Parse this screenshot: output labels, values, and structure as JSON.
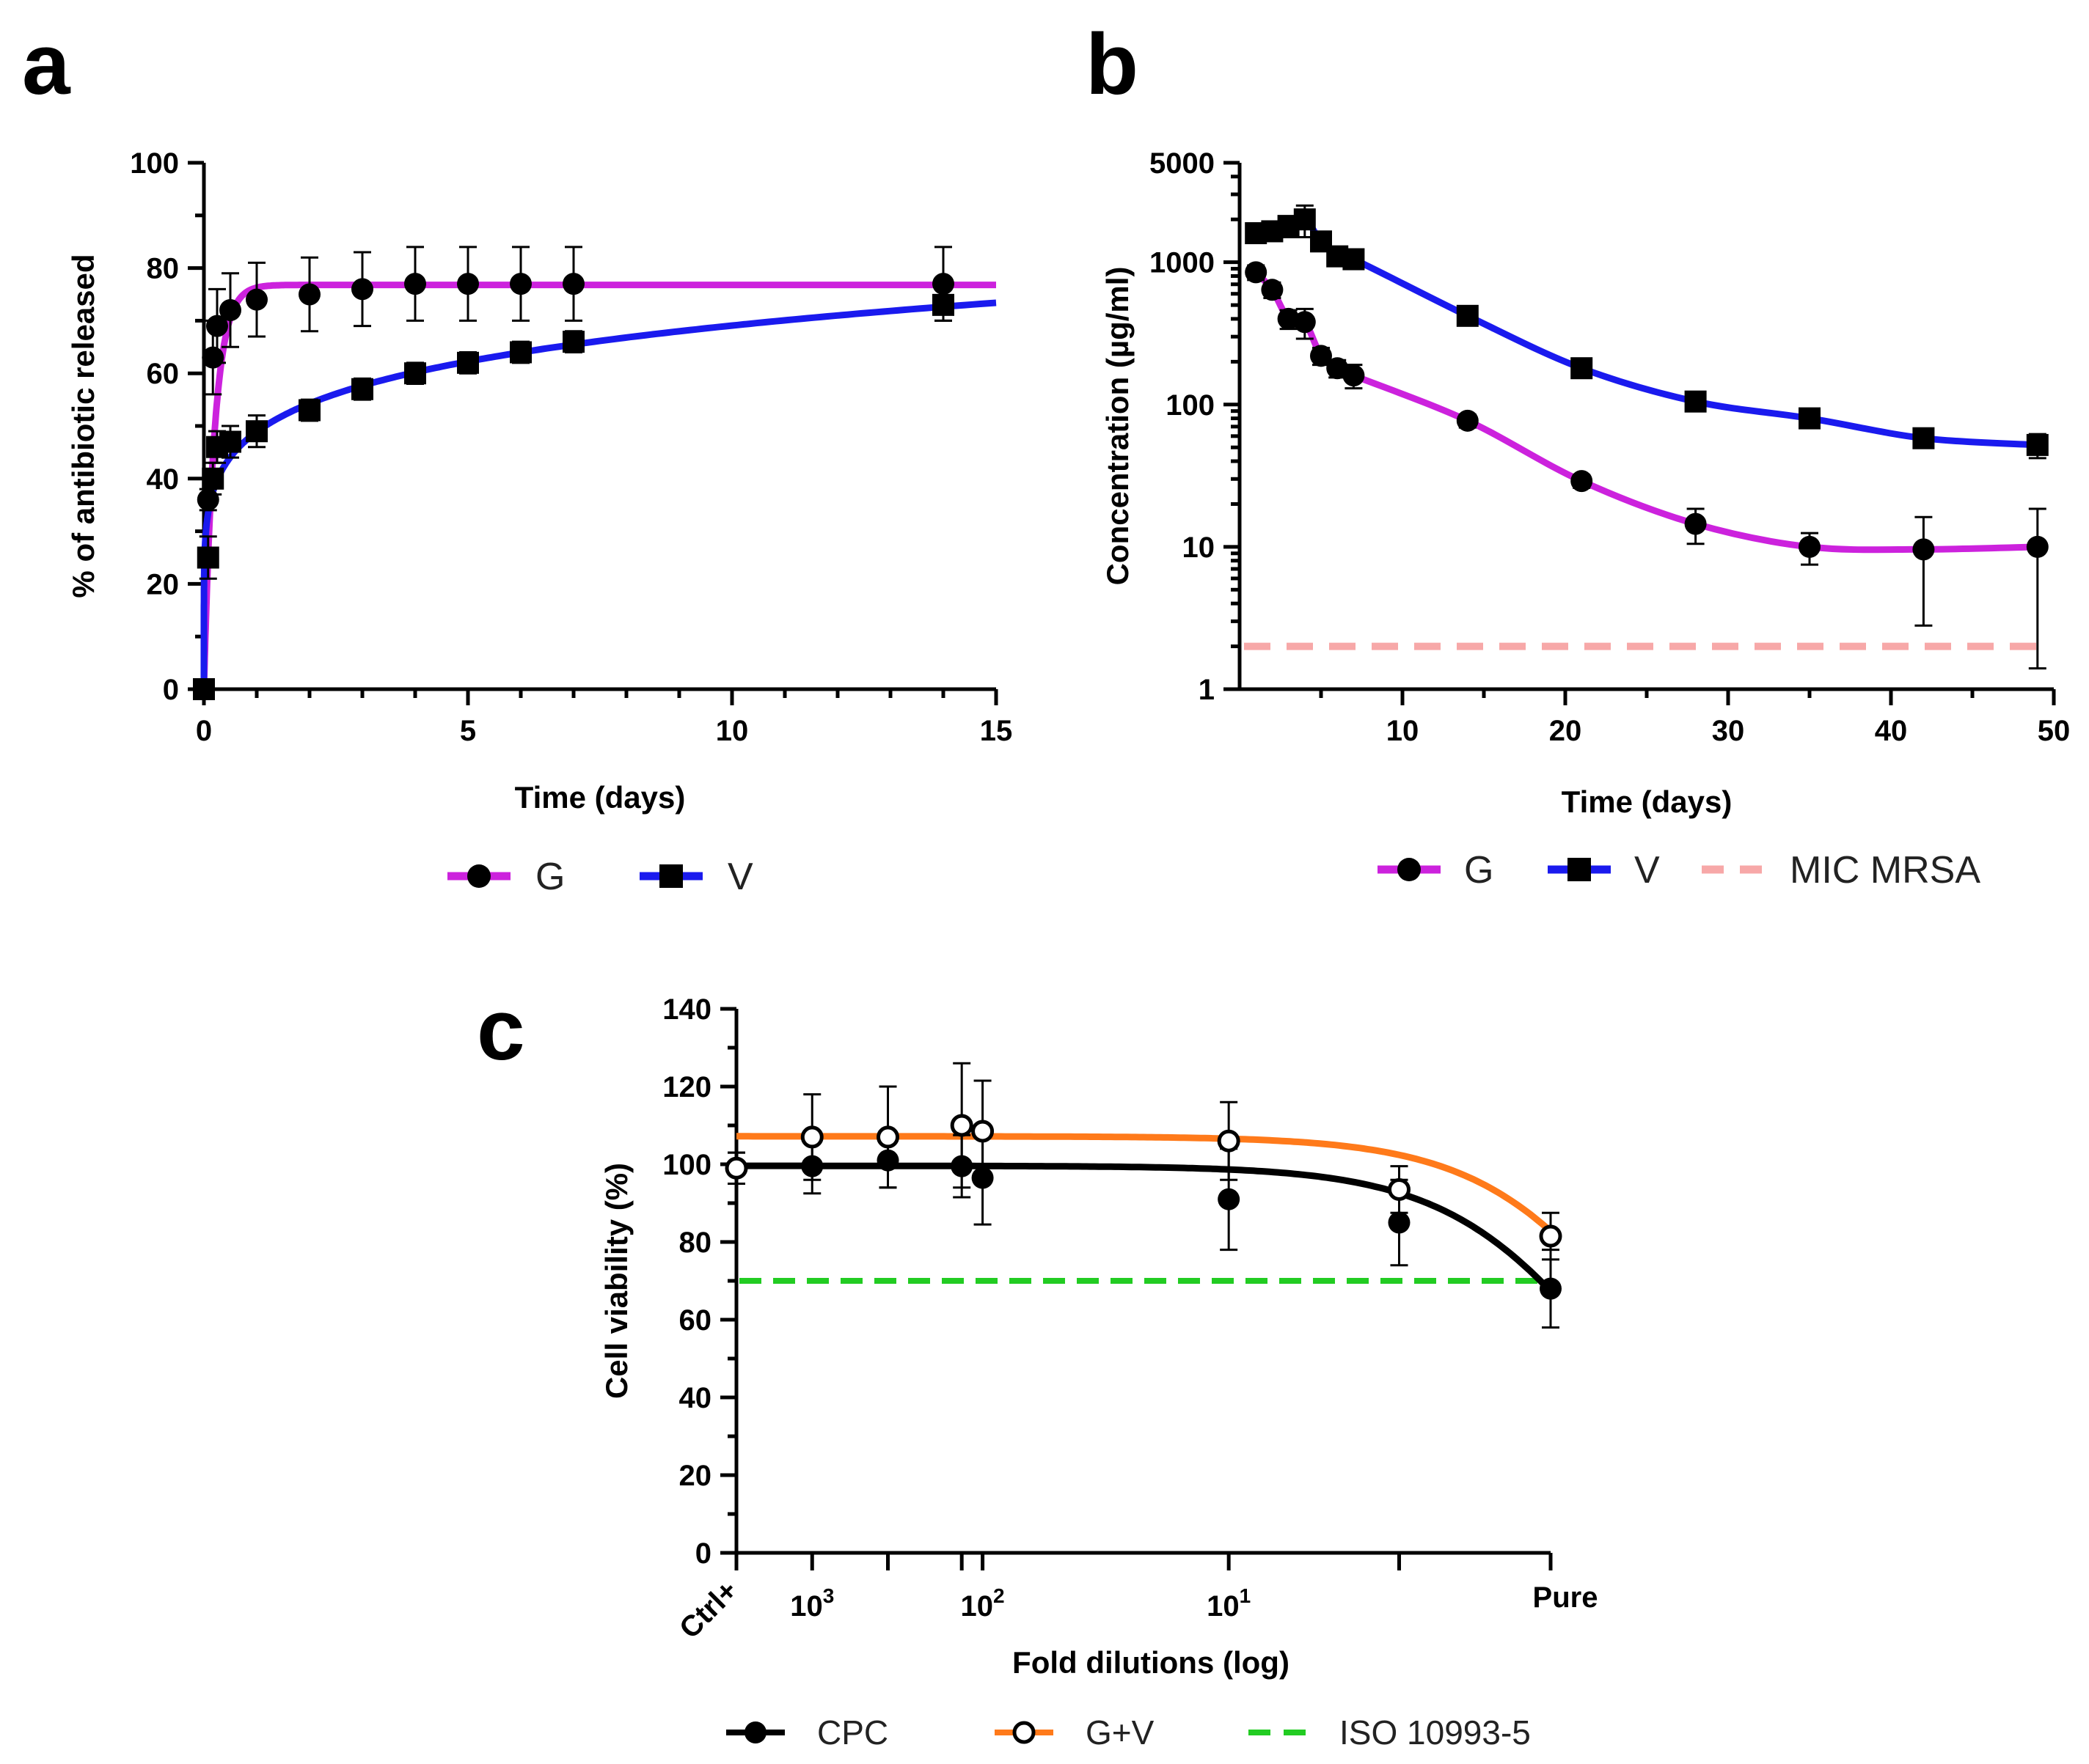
{
  "chart_data": [
    {
      "panel": "a",
      "type": "scatter",
      "xlabel": "Time (days)",
      "ylabel": "% of antibiotic released",
      "xlim": [
        0,
        15
      ],
      "ylim": [
        0,
        100
      ],
      "xticks": [
        0,
        5,
        10,
        15
      ],
      "yticks": [
        0,
        20,
        40,
        60,
        80,
        100
      ],
      "legend": "bottom",
      "series": [
        {
          "name": "G",
          "color": "#cc22dd",
          "marker": "circle",
          "x": [
            0,
            0.08,
            0.17,
            0.25,
            0.5,
            1,
            2,
            3,
            4,
            5,
            6,
            7,
            14
          ],
          "y": [
            0,
            36,
            63,
            69,
            72,
            74,
            75,
            76,
            77,
            77,
            77,
            77,
            77
          ],
          "err": [
            0,
            2,
            7,
            7,
            7,
            7,
            7,
            7,
            7,
            7,
            7,
            7,
            7
          ],
          "fit": {
            "model": "one-phase",
            "plateau": 76.8,
            "k": 5
          }
        },
        {
          "name": "V",
          "color": "#1a1aee",
          "marker": "square",
          "x": [
            0,
            0.08,
            0.17,
            0.25,
            0.5,
            1,
            2,
            3,
            4,
            5,
            6,
            7,
            14
          ],
          "y": [
            0,
            25,
            40,
            46,
            47,
            49,
            53,
            57,
            60,
            62,
            64,
            66,
            73
          ],
          "err": [
            0,
            4,
            3,
            3,
            3,
            3,
            2,
            2,
            2,
            2,
            2,
            2,
            3
          ],
          "fit": {
            "model": "power",
            "a": 48.9,
            "b": 0.15
          }
        }
      ]
    },
    {
      "panel": "b",
      "type": "line",
      "xlabel": "Time (days)",
      "ylabel": "Concentration (µg/ml)",
      "xlim": [
        0,
        50
      ],
      "ylim": [
        1,
        5000
      ],
      "yscale": "log",
      "xticks": [
        10,
        20,
        30,
        40,
        50
      ],
      "ytick_labels": [
        "1",
        "10",
        "100",
        "1000",
        "5000"
      ],
      "yticks": [
        1,
        10,
        100,
        1000,
        5000
      ],
      "legend": "bottom",
      "series": [
        {
          "name": "G",
          "color": "#cc22dd",
          "marker": "circle",
          "x": [
            1,
            2,
            3,
            4,
            5,
            6,
            7,
            14,
            21,
            28,
            35,
            42,
            49
          ],
          "y": [
            850,
            640,
            400,
            380,
            220,
            180,
            160,
            77,
            29,
            14.5,
            10,
            9.6,
            10
          ],
          "err_lo": [
            100,
            80,
            60,
            90,
            30,
            25,
            30,
            8,
            3,
            4,
            2.5,
            6.8,
            8.6
          ],
          "err_hi": [
            100,
            80,
            60,
            90,
            30,
            25,
            30,
            8,
            3,
            4,
            2.5,
            6.6,
            8.5
          ]
        },
        {
          "name": "V",
          "color": "#1a1aee",
          "marker": "square",
          "x": [
            1,
            2,
            3,
            4,
            5,
            6,
            7,
            14,
            21,
            28,
            35,
            42,
            49
          ],
          "y": [
            1600,
            1650,
            1800,
            2000,
            1400,
            1100,
            1050,
            420,
            180,
            105,
            80,
            58,
            52
          ],
          "err_lo": [
            200,
            200,
            300,
            500,
            200,
            100,
            100,
            40,
            15,
            8,
            6,
            5,
            10
          ],
          "err_hi": [
            200,
            200,
            300,
            500,
            200,
            100,
            100,
            40,
            15,
            8,
            6,
            5,
            10
          ]
        },
        {
          "name": "MIC MRSA",
          "color": "#f7a8a8",
          "style": "dashed",
          "x": [
            0,
            50
          ],
          "y": [
            2,
            2
          ]
        }
      ]
    },
    {
      "panel": "c",
      "type": "scatter",
      "xlabel": "Fold dilutions (log)",
      "ylabel": "Cell viability (%)",
      "ylim": [
        0,
        140
      ],
      "yticks": [
        0,
        20,
        40,
        60,
        80,
        100,
        120,
        140
      ],
      "xlim": [
        -4.3,
        0
      ],
      "xscale": "log10 of dilution fraction",
      "xtick_labels": [
        {
          "base": "Ctrl+",
          "sup": ""
        },
        {
          "base": "10",
          "sup": "3"
        },
        {
          "base": "10",
          "sup": "2"
        },
        {
          "base": "10",
          "sup": "1"
        },
        {
          "base": "Pure",
          "sup": ""
        }
      ],
      "xtick_positions": [
        -4.3,
        -3.9,
        -3.0,
        -1.7,
        0
      ],
      "minor_ticks": [
        -3.5,
        -3.11,
        -0.8
      ],
      "legend": "bottom",
      "series": [
        {
          "name": "CPC",
          "color": "#000000",
          "marker": "circle-filled",
          "x": [
            -4.3,
            -3.9,
            -3.5,
            -3.11,
            -3.0,
            -1.7,
            -0.8,
            0
          ],
          "y": [
            99,
            99.5,
            101,
            99.5,
            96.5,
            91,
            85,
            68
          ],
          "err": [
            4,
            7,
            7,
            8,
            12,
            13,
            11,
            10
          ],
          "fit": {
            "top": 99.6,
            "ic50_log": 0.32,
            "hill": 1
          }
        },
        {
          "name": "G+V",
          "color": "#ff7a1a",
          "marker": "circle-open",
          "x": [
            -4.3,
            -3.9,
            -3.5,
            -3.11,
            -3.0,
            -1.7,
            -0.8,
            0
          ],
          "y": [
            99,
            107,
            107,
            110,
            108.5,
            106,
            93.5,
            81.5
          ],
          "err": [
            4,
            11,
            13,
            16,
            13,
            10,
            6,
            6
          ],
          "fit": {
            "top": 107.2,
            "ic50_log": 0.53,
            "hill": 1
          }
        },
        {
          "name": "ISO 10993-5",
          "color": "#22cc22",
          "style": "dashed",
          "x": [
            -4.3,
            0
          ],
          "y": [
            70,
            70
          ]
        }
      ]
    }
  ],
  "panel_letters": [
    "a",
    "b",
    "c"
  ]
}
